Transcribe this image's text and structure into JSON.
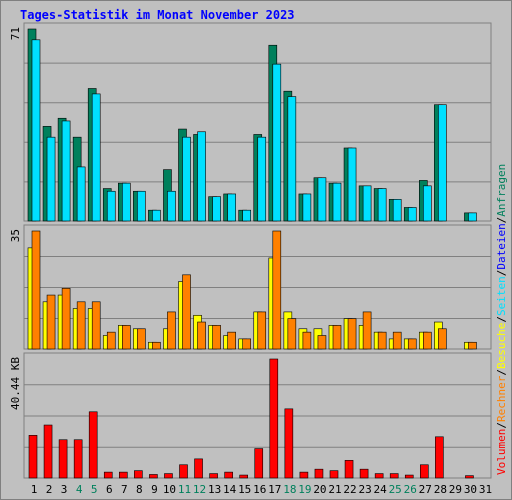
{
  "title": "Tages-Statistik im Monat November 2023",
  "colors": {
    "background": "#c0c0c0",
    "grid": "#808080",
    "title": "#0000ff",
    "anfragen": "#00805c",
    "dateien": "#00e0ff",
    "seiten": "#00e0ff",
    "besuche": "#ffff00",
    "rechner": "#ff8000",
    "volumen": "#ff0000",
    "weekend_day": "#00805c"
  },
  "chart_data": {
    "type": "bar",
    "categories": [
      "1",
      "2",
      "3",
      "4",
      "5",
      "6",
      "7",
      "8",
      "9",
      "10",
      "11",
      "12",
      "13",
      "14",
      "15",
      "16",
      "17",
      "18",
      "19",
      "20",
      "21",
      "22",
      "23",
      "24",
      "25",
      "26",
      "27",
      "28",
      "29",
      "30",
      "31"
    ],
    "weekend_days": [
      "4",
      "5",
      "11",
      "12",
      "18",
      "19",
      "25",
      "26"
    ],
    "panels": [
      {
        "max_label": "71",
        "ymax": 71,
        "series": [
          {
            "name": "Anfragen",
            "values": [
              71,
              35,
              38,
              31,
              49,
              12,
              14,
              11,
              4,
              19,
              34,
              32,
              9,
              10,
              4,
              32,
              65,
              48,
              10,
              16,
              14,
              27,
              13,
              12,
              8,
              5,
              15,
              43,
              0,
              3,
              0
            ]
          },
          {
            "name": "Dateien",
            "values": [
              67,
              31,
              37,
              20,
              47,
              11,
              14,
              11,
              4,
              11,
              31,
              33,
              9,
              10,
              4,
              31,
              58,
              46,
              10,
              16,
              14,
              27,
              13,
              12,
              8,
              5,
              13,
              43,
              0,
              3,
              0
            ]
          }
        ]
      },
      {
        "max_label": "35",
        "ymax": 35,
        "series": [
          {
            "name": "Besuche",
            "values": [
              30,
              14,
              16,
              12,
              12,
              4,
              7,
              6,
              2,
              6,
              20,
              10,
              7,
              4,
              3,
              11,
              27,
              11,
              6,
              6,
              7,
              9,
              7,
              5,
              3,
              3,
              5,
              8,
              0,
              2,
              0
            ]
          },
          {
            "name": "Rechner",
            "values": [
              35,
              16,
              18,
              14,
              14,
              5,
              7,
              6,
              2,
              11,
              22,
              8,
              7,
              5,
              3,
              11,
              35,
              9,
              5,
              4,
              7,
              9,
              11,
              5,
              5,
              3,
              5,
              6,
              0,
              2,
              0
            ]
          }
        ]
      },
      {
        "max_label": "40.44 KB",
        "ymax": 40.44,
        "series": [
          {
            "name": "Volumen",
            "values": [
              14.5,
              18,
              13,
              13,
              22.5,
              2,
              2,
              2.5,
              1.2,
              1.5,
              4.5,
              6.5,
              1.5,
              2,
              1,
              10,
              40.44,
              23.5,
              2,
              3,
              2.5,
              6,
              3,
              1.5,
              1.5,
              1,
              4.5,
              14,
              0,
              0.8,
              0
            ]
          }
        ]
      }
    ],
    "side_labels": [
      {
        "text": "Volumen",
        "color": "#ff0000"
      },
      {
        "text": "/",
        "color": "#000000"
      },
      {
        "text": "Rechner",
        "color": "#ff8000"
      },
      {
        "text": "/",
        "color": "#000000"
      },
      {
        "text": "Besuche",
        "color": "#ffff00"
      },
      {
        "text": "/",
        "color": "#000000"
      },
      {
        "text": "Seiten",
        "color": "#00e0ff"
      },
      {
        "text": "/",
        "color": "#000000"
      },
      {
        "text": "Dateien",
        "color": "#0000ff"
      },
      {
        "text": "/",
        "color": "#000000"
      },
      {
        "text": "Anfragen",
        "color": "#00805c"
      }
    ]
  }
}
